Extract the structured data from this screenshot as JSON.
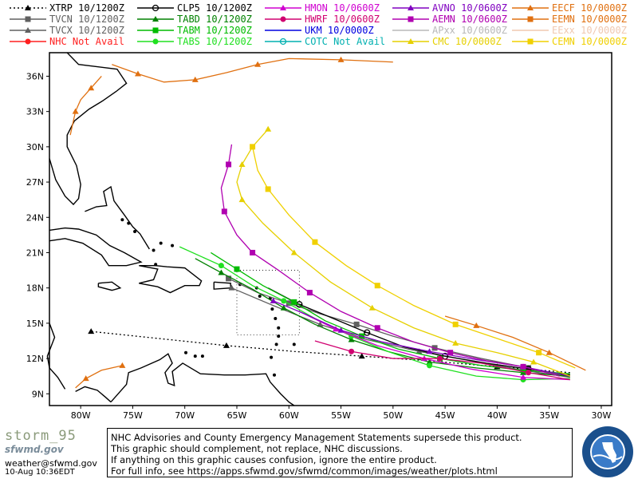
{
  "legend": [
    {
      "label": "XTRP  10/1200Z",
      "color": "#000000",
      "marker": "triangle",
      "dash": "2,3"
    },
    {
      "label": "TVCN  10/1200Z",
      "color": "#606060",
      "marker": "square",
      "dash": ""
    },
    {
      "label": "TVCX  10/1200Z",
      "color": "#606060",
      "marker": "triangle",
      "dash": ""
    },
    {
      "label": "NHC  Not Avail",
      "color": "#ff2020",
      "marker": "circle",
      "dash": ""
    },
    {
      "label": "CLP5  10/1200Z",
      "color": "#000000",
      "marker": "theta",
      "dash": ""
    },
    {
      "label": "TABD  10/1200Z",
      "color": "#008000",
      "marker": "triangle",
      "dash": ""
    },
    {
      "label": "TABM  10/1200Z",
      "color": "#00bb00",
      "marker": "square",
      "dash": ""
    },
    {
      "label": "TABS  10/1200Z",
      "color": "#20e020",
      "marker": "circle",
      "dash": ""
    },
    {
      "label": "HMON  10/0600Z",
      "color": "#d000d0",
      "marker": "triangle",
      "dash": ""
    },
    {
      "label": "HWRF  10/0600Z",
      "color": "#d00070",
      "marker": "circle",
      "dash": ""
    },
    {
      "label": "UKM   10/0000Z",
      "color": "#0000e0",
      "marker": "none",
      "dash": ""
    },
    {
      "label": "COTC  Not Avail",
      "color": "#00b0b0",
      "marker": "theta",
      "dash": ""
    },
    {
      "label": "AVNO  10/0600Z",
      "color": "#8000c0",
      "marker": "triangle",
      "dash": ""
    },
    {
      "label": "AEMN  10/0600Z",
      "color": "#b000b0",
      "marker": "square",
      "dash": ""
    },
    {
      "label": "APxx  10/0600Z",
      "color": "#b8b8b8",
      "marker": "none",
      "dash": ""
    },
    {
      "label": "CMC   10/0000Z",
      "color": "#e6d000",
      "marker": "triangle",
      "dash": ""
    },
    {
      "label": "EECF  10/0000Z",
      "color": "#e07010",
      "marker": "triangle",
      "dash": ""
    },
    {
      "label": "EEMN  10/0000Z",
      "color": "#e07010",
      "marker": "square",
      "dash": ""
    },
    {
      "label": "EExx  10/0000Z",
      "color": "#f0c8b0",
      "marker": "none",
      "dash": ""
    },
    {
      "label": "CEMN  10/0000Z",
      "color": "#f0d000",
      "marker": "square",
      "dash": ""
    }
  ],
  "axes": {
    "lat_labels": [
      "36N",
      "33N",
      "30N",
      "27N",
      "24N",
      "21N",
      "18N",
      "15N",
      "12N",
      "9N"
    ],
    "lon_labels": [
      "80W",
      "75W",
      "70W",
      "65W",
      "60W",
      "55W",
      "50W",
      "45W",
      "40W",
      "35W",
      "30W"
    ]
  },
  "tracks": [
    {
      "model": "XTRP",
      "color": "#000000",
      "dash": "2,3",
      "marker": "triangle",
      "points": [
        [
          -33.0,
          10.8
        ],
        [
          -40.0,
          11.3
        ],
        [
          -46.5,
          11.8
        ],
        [
          -53.0,
          12.2
        ],
        [
          -59.5,
          12.6
        ],
        [
          -66.0,
          13.1
        ],
        [
          -72.5,
          13.7
        ],
        [
          -79.0,
          14.3
        ]
      ]
    },
    {
      "model": "TVCN",
      "color": "#606060",
      "dash": "",
      "marker": "square",
      "points": [
        [
          -33.0,
          10.4
        ],
        [
          -37.0,
          11.2
        ],
        [
          -41.5,
          12.0
        ],
        [
          -46.0,
          12.9
        ],
        [
          -50.0,
          13.9
        ],
        [
          -53.5,
          14.9
        ],
        [
          -57.0,
          15.8
        ],
        [
          -60.0,
          16.7
        ],
        [
          -63.0,
          17.6
        ],
        [
          -65.8,
          18.8
        ]
      ]
    },
    {
      "model": "TVCX",
      "color": "#606060",
      "dash": "",
      "marker": "triangle",
      "points": [
        [
          -33.0,
          10.4
        ],
        [
          -37.5,
          11.0
        ],
        [
          -42.5,
          11.8
        ],
        [
          -47.5,
          12.6
        ],
        [
          -52.5,
          13.6
        ],
        [
          -57.0,
          14.9
        ],
        [
          -61.5,
          16.5
        ],
        [
          -65.5,
          18.0
        ]
      ]
    },
    {
      "model": "CLP5",
      "color": "#000000",
      "dash": "",
      "marker": "theta",
      "points": [
        [
          -33.0,
          10.6
        ],
        [
          -37.0,
          11.1
        ],
        [
          -41.0,
          11.6
        ],
        [
          -45.0,
          12.2
        ],
        [
          -49.0,
          13.0
        ],
        [
          -52.5,
          14.2
        ],
        [
          -56.0,
          15.5
        ],
        [
          -59.0,
          16.6
        ],
        [
          -62.0,
          18.0
        ]
      ]
    },
    {
      "model": "TABD",
      "color": "#008000",
      "dash": "",
      "marker": "triangle",
      "points": [
        [
          -33.0,
          10.5
        ],
        [
          -37.5,
          10.8
        ],
        [
          -42.0,
          11.2
        ],
        [
          -46.5,
          11.7
        ],
        [
          -50.5,
          12.6
        ],
        [
          -54.0,
          13.6
        ],
        [
          -57.5,
          14.9
        ],
        [
          -60.5,
          16.3
        ],
        [
          -63.5,
          17.9
        ],
        [
          -66.5,
          19.3
        ],
        [
          -69.0,
          20.5
        ]
      ]
    },
    {
      "model": "TABM",
      "color": "#00bb00",
      "dash": "",
      "marker": "square",
      "points": [
        [
          -33.0,
          10.7
        ],
        [
          -37.5,
          11.0
        ],
        [
          -41.5,
          11.4
        ],
        [
          -45.5,
          12.0
        ],
        [
          -49.5,
          12.8
        ],
        [
          -53.0,
          13.9
        ],
        [
          -56.5,
          15.2
        ],
        [
          -59.5,
          16.8
        ],
        [
          -62.5,
          18.2
        ],
        [
          -65.0,
          19.6
        ],
        [
          -67.5,
          21.0
        ]
      ]
    },
    {
      "model": "TABS",
      "color": "#20e020",
      "dash": "",
      "marker": "circle",
      "points": [
        [
          -33.0,
          10.3
        ],
        [
          -37.5,
          10.2
        ],
        [
          -42.0,
          10.5
        ],
        [
          -46.5,
          11.4
        ],
        [
          -50.5,
          12.6
        ],
        [
          -54.0,
          13.9
        ],
        [
          -57.5,
          15.4
        ],
        [
          -60.5,
          16.9
        ],
        [
          -63.5,
          18.2
        ],
        [
          -66.5,
          19.9
        ],
        [
          -70.5,
          21.5
        ]
      ]
    },
    {
      "model": "HMON",
      "color": "#d000d0",
      "dash": "",
      "marker": "triangle",
      "points": [
        [
          -33.0,
          10.2
        ],
        [
          -37.5,
          10.4
        ],
        [
          -42.5,
          11.1
        ],
        [
          -47.0,
          12.0
        ],
        [
          -51.5,
          13.1
        ],
        [
          -55.5,
          14.5
        ],
        [
          -59.0,
          16.0
        ]
      ]
    },
    {
      "model": "HWRF",
      "color": "#d00070",
      "dash": "",
      "marker": "circle",
      "points": [
        [
          -33.0,
          10.2
        ],
        [
          -37.0,
          10.8
        ],
        [
          -41.5,
          11.6
        ],
        [
          -45.5,
          12.0
        ],
        [
          -50.0,
          12.0
        ],
        [
          -54.0,
          12.6
        ],
        [
          -57.5,
          13.5
        ]
      ]
    },
    {
      "model": "AVNO",
      "color": "#8000c0",
      "dash": "",
      "marker": "triangle",
      "points": [
        [
          -33.0,
          10.5
        ],
        [
          -37.5,
          11.3
        ],
        [
          -42.0,
          11.9
        ],
        [
          -46.5,
          12.6
        ],
        [
          -51.0,
          13.4
        ],
        [
          -55.0,
          14.4
        ],
        [
          -58.5,
          15.8
        ],
        [
          -61.5,
          16.9
        ]
      ]
    },
    {
      "model": "AEMN",
      "color": "#b000b0",
      "dash": "",
      "marker": "square",
      "points": [
        [
          -34.0,
          10.5
        ],
        [
          -37.5,
          11.3
        ],
        [
          -41.0,
          11.8
        ],
        [
          -44.5,
          12.5
        ],
        [
          -48.0,
          13.4
        ],
        [
          -51.5,
          14.6
        ],
        [
          -55.0,
          16.0
        ],
        [
          -58.0,
          17.6
        ],
        [
          -61.0,
          19.5
        ],
        [
          -63.5,
          21.0
        ],
        [
          -65.0,
          22.5
        ],
        [
          -66.2,
          24.5
        ],
        [
          -66.5,
          26.5
        ],
        [
          -65.8,
          28.5
        ],
        [
          -65.5,
          30.2
        ]
      ]
    },
    {
      "model": "CMC",
      "color": "#e6d000",
      "dash": "",
      "marker": "triangle",
      "points": [
        [
          -33.0,
          10.5
        ],
        [
          -36.5,
          11.7
        ],
        [
          -40.0,
          12.5
        ],
        [
          -44.0,
          13.3
        ],
        [
          -48.0,
          14.6
        ],
        [
          -52.0,
          16.3
        ],
        [
          -56.0,
          18.5
        ],
        [
          -59.5,
          21.0
        ],
        [
          -62.5,
          23.5
        ],
        [
          -64.5,
          25.5
        ],
        [
          -65.0,
          27.0
        ],
        [
          -64.5,
          28.5
        ],
        [
          -63.5,
          30.0
        ],
        [
          -62.0,
          31.5
        ]
      ]
    },
    {
      "model": "CEMN",
      "color": "#f0d000",
      "dash": "",
      "marker": "square",
      "points": [
        [
          -32.5,
          11.2
        ],
        [
          -36.0,
          12.5
        ],
        [
          -40.0,
          13.7
        ],
        [
          -44.0,
          14.9
        ],
        [
          -48.0,
          16.5
        ],
        [
          -51.5,
          18.2
        ],
        [
          -54.5,
          19.9
        ],
        [
          -57.5,
          21.9
        ],
        [
          -60.0,
          24.2
        ],
        [
          -62.0,
          26.4
        ],
        [
          -63.0,
          28.0
        ],
        [
          -63.5,
          30.0
        ]
      ]
    },
    {
      "model": "EECF",
      "color": "#e07010",
      "dash": "",
      "marker": "triangle",
      "points": [
        [
          -31.5,
          11.0
        ],
        [
          -35.0,
          12.5
        ],
        [
          -38.5,
          13.8
        ],
        [
          -42.0,
          14.8
        ],
        [
          -45.0,
          15.6
        ]
      ]
    },
    {
      "model": "EECF-2",
      "color": "#e07010",
      "dash": "",
      "marker": "triangle",
      "points": [
        [
          -80.5,
          9.5
        ],
        [
          -79.5,
          10.3
        ],
        [
          -78.0,
          11.0
        ],
        [
          -76.0,
          11.4
        ]
      ]
    },
    {
      "model": "EECF-3",
      "color": "#e07010",
      "dash": "",
      "marker": "triangle",
      "points": [
        [
          -77.0,
          37.0
        ],
        [
          -74.5,
          36.2
        ],
        [
          -72.0,
          35.5
        ],
        [
          -69.0,
          35.7
        ],
        [
          -66.0,
          36.3
        ],
        [
          -63.0,
          37.0
        ],
        [
          -60.0,
          37.5
        ],
        [
          -55.0,
          37.4
        ],
        [
          -50.0,
          37.2
        ]
      ]
    },
    {
      "model": "EECF-4",
      "color": "#e07010",
      "dash": "",
      "marker": "triangle",
      "points": [
        [
          -81.0,
          31.0
        ],
        [
          -80.5,
          33.0
        ],
        [
          -80.0,
          34.0
        ],
        [
          -79.0,
          35.0
        ],
        [
          -78.0,
          36.0
        ]
      ]
    }
  ],
  "footer": {
    "brand_name": "storm_95",
    "brand_logo": "sfwmd.gov",
    "email": "weather@sfwmd.gov",
    "timestamp": "10-Aug 10:36EDT",
    "disclaimer": [
      "NHC Advisories and County Emergency Management Statements supersede this product.",
      "This graphic should complement, not replace, NHC discussions.",
      "If anything on this graphic causes confusion, ignore the entire product.",
      "For full info, see  https://apps.sfwmd.gov/sfwmd/common/images/weather/plots.html"
    ],
    "seal_text": "SOUTH FLORIDA WATER MANAGEMENT DISTRICT"
  }
}
